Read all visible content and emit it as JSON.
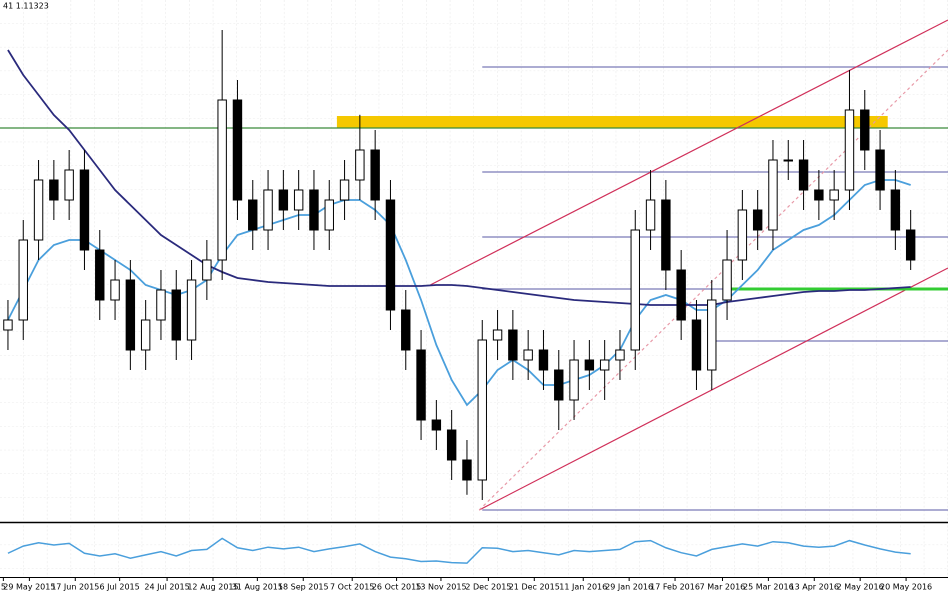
{
  "header": "41 1.11323",
  "chart_data": {
    "type": "candlestick",
    "x": [
      0,
      1,
      2,
      3,
      4,
      5,
      6,
      7,
      8,
      9,
      10,
      11,
      12,
      13,
      14,
      15,
      16,
      17,
      18,
      19,
      20,
      21,
      22,
      23,
      24,
      25,
      26,
      27,
      28,
      29,
      30,
      31,
      32,
      33,
      34,
      35,
      36,
      37,
      38,
      39,
      40,
      41,
      42,
      43,
      44,
      45,
      46,
      47,
      48,
      49,
      50,
      51,
      52,
      53,
      54,
      55,
      56,
      57,
      58,
      59
    ],
    "open": [
      1.0955,
      1.098,
      1.118,
      1.133,
      1.128,
      1.1355,
      1.1155,
      1.103,
      1.108,
      1.0905,
      1.098,
      1.1055,
      1.093,
      1.108,
      1.113,
      1.153,
      1.128,
      1.1205,
      1.1305,
      1.1255,
      1.1305,
      1.1205,
      1.128,
      1.133,
      1.1405,
      1.128,
      1.1005,
      1.0905,
      1.073,
      1.0705,
      1.063,
      1.058,
      1.093,
      1.0955,
      1.088,
      1.0905,
      1.0855,
      1.078,
      1.088,
      1.0855,
      1.088,
      1.0905,
      1.1205,
      1.128,
      1.1105,
      1.098,
      1.0855,
      1.103,
      1.113,
      1.1255,
      1.1205,
      1.138,
      1.138,
      1.1305,
      1.128,
      1.1305,
      1.1505,
      1.1405,
      1.1305,
      1.1205
    ],
    "high": [
      1.103,
      1.123,
      1.138,
      1.138,
      1.1405,
      1.1405,
      1.1205,
      1.113,
      1.113,
      1.103,
      1.1105,
      1.1105,
      1.113,
      1.118,
      1.1705,
      1.158,
      1.133,
      1.1355,
      1.1355,
      1.1355,
      1.1355,
      1.133,
      1.138,
      1.1493,
      1.1455,
      1.133,
      1.1055,
      1.0955,
      1.078,
      1.0755,
      1.068,
      1.098,
      1.1005,
      1.1005,
      1.0955,
      1.0955,
      1.0905,
      1.093,
      1.093,
      1.093,
      1.0955,
      1.1255,
      1.1355,
      1.133,
      1.1155,
      1.103,
      1.108,
      1.1205,
      1.1305,
      1.1305,
      1.143,
      1.143,
      1.143,
      1.1355,
      1.1355,
      1.1605,
      1.1555,
      1.1455,
      1.1355,
      1.1255
    ],
    "low": [
      1.0905,
      1.093,
      1.113,
      1.123,
      1.123,
      1.1105,
      1.098,
      1.098,
      1.0855,
      1.0855,
      1.093,
      1.088,
      1.088,
      1.103,
      1.108,
      1.123,
      1.1155,
      1.1155,
      1.1205,
      1.1205,
      1.1155,
      1.1155,
      1.123,
      1.128,
      1.123,
      1.0955,
      1.0855,
      1.068,
      1.0655,
      1.058,
      1.0543,
      1.053,
      1.088,
      1.083,
      1.083,
      1.0805,
      1.0705,
      1.073,
      1.0805,
      1.078,
      1.083,
      1.0855,
      1.1155,
      1.1055,
      1.093,
      1.0805,
      1.0805,
      1.098,
      1.108,
      1.1155,
      1.1155,
      1.133,
      1.1255,
      1.123,
      1.123,
      1.1255,
      1.1355,
      1.1255,
      1.1155,
      1.1105
    ],
    "close": [
      1.098,
      1.118,
      1.133,
      1.128,
      1.1355,
      1.1155,
      1.103,
      1.108,
      1.0905,
      1.098,
      1.1055,
      1.093,
      1.108,
      1.113,
      1.153,
      1.128,
      1.1205,
      1.1305,
      1.1255,
      1.1305,
      1.1205,
      1.128,
      1.133,
      1.1405,
      1.128,
      1.1005,
      1.0905,
      1.073,
      1.0705,
      1.063,
      1.058,
      1.093,
      1.0955,
      1.088,
      1.0905,
      1.0855,
      1.078,
      1.088,
      1.0855,
      1.088,
      1.0905,
      1.1205,
      1.128,
      1.1105,
      1.098,
      1.0855,
      1.103,
      1.113,
      1.1255,
      1.1205,
      1.138,
      1.138,
      1.1305,
      1.128,
      1.1305,
      1.1505,
      1.1405,
      1.1305,
      1.1205,
      1.113
    ],
    "up_color": "#ffffff",
    "down_color": "#000000",
    "xlim": [
      -0.52,
      61.44
    ],
    "ylim": [
      1.048,
      1.178
    ],
    "xticks": [
      {
        "value": -0.3,
        "label": "5"
      },
      {
        "value": 1.4,
        "label": "29 May 2015"
      },
      {
        "value": 4.4,
        "label": "17 Jun 2015"
      },
      {
        "value": 7.3,
        "label": "6 Jul 2015"
      },
      {
        "value": 10.4,
        "label": "24 Jul 2015"
      },
      {
        "value": 13.4,
        "label": "12 Aug 2015"
      },
      {
        "value": 16.3,
        "label": "31 Aug 2015"
      },
      {
        "value": 19.3,
        "label": "18 Sep 2015"
      },
      {
        "value": 22.5,
        "label": "7 Oct 2015"
      },
      {
        "value": 25.4,
        "label": "26 Oct 2015"
      },
      {
        "value": 28.3,
        "label": "13 Nov 2015"
      },
      {
        "value": 31.4,
        "label": "2 Dec 2015"
      },
      {
        "value": 34.4,
        "label": "21 Dec 2015"
      },
      {
        "value": 37.6,
        "label": "11 Jan 2016"
      },
      {
        "value": 40.6,
        "label": "29 Jan 2016"
      },
      {
        "value": 43.6,
        "label": "17 Feb 2016"
      },
      {
        "value": 46.7,
        "label": "7 Mar 2016"
      },
      {
        "value": 49.7,
        "label": "25 Mar 2016"
      },
      {
        "value": 52.7,
        "label": "13 Apr 2016"
      },
      {
        "value": 55.7,
        "label": "2 May 2016"
      },
      {
        "value": 58.7,
        "label": "20 May 2016"
      }
    ],
    "moving_averages": [
      {
        "color": "#4a9fdc",
        "values": [
          1.098,
          1.1055,
          1.113,
          1.11675,
          1.118,
          1.118,
          1.1155,
          1.113,
          1.1105,
          1.10675,
          1.1055,
          1.10425,
          1.1055,
          1.108,
          1.11425,
          1.11925,
          1.1205,
          1.12175,
          1.123,
          1.12425,
          1.12425,
          1.12675,
          1.128,
          1.128,
          1.1255,
          1.12175,
          1.113,
          1.103,
          1.09175,
          1.083,
          1.07675,
          1.0805,
          1.0855,
          1.088,
          1.0855,
          1.08175,
          1.08175,
          1.083,
          1.08425,
          1.08675,
          1.0905,
          1.098,
          1.103,
          1.10425,
          1.103,
          1.1005,
          1.1005,
          1.103,
          1.10675,
          1.1105,
          1.1155,
          1.118,
          1.1205,
          1.12175,
          1.12425,
          1.128,
          1.13175,
          1.133,
          1.133,
          1.13175
        ]
      },
      {
        "color": "#2a2a7c",
        "values": [
          1.1655,
          1.15925,
          1.15425,
          1.14925,
          1.1455,
          1.1405,
          1.1355,
          1.1305,
          1.12675,
          1.123,
          1.11925,
          1.11675,
          1.11425,
          1.11175,
          1.11,
          1.1085,
          1.108,
          1.1075,
          1.10725,
          1.107,
          1.10675,
          1.1065,
          1.1065,
          1.1065,
          1.1065,
          1.1065,
          1.1065,
          1.1065,
          1.10675,
          1.10675,
          1.1065,
          1.106,
          1.1055,
          1.105,
          1.1045,
          1.104,
          1.1035,
          1.103,
          1.10275,
          1.1025,
          1.10225,
          1.102,
          1.10175,
          1.10175,
          1.10175,
          1.10175,
          1.10175,
          1.1025,
          1.103,
          1.1035,
          1.104,
          1.1045,
          1.105,
          1.10525,
          1.10525,
          1.1055,
          1.1055,
          1.10575,
          1.106,
          1.10625
        ]
      }
    ],
    "oscillator": {
      "color": "#4a9fdc",
      "ylim": [
        0,
        100
      ],
      "values": [
        45,
        58,
        64,
        60,
        63,
        45,
        40,
        44,
        36,
        42,
        48,
        40,
        50,
        52,
        72,
        55,
        50,
        56,
        53,
        56,
        48,
        53,
        57,
        62,
        48,
        38,
        35,
        30,
        31,
        28,
        27,
        55,
        54,
        48,
        50,
        46,
        42,
        50,
        48,
        50,
        52,
        66,
        68,
        55,
        46,
        40,
        52,
        57,
        62,
        58,
        66,
        64,
        58,
        56,
        58,
        68,
        60,
        53,
        47,
        44
      ]
    },
    "zone": {
      "color": "#f5c800",
      "x": [
        21.5,
        57.5
      ],
      "y": [
        1.146,
        1.149
      ]
    },
    "lines": [
      {
        "color": "#3a8a3a",
        "x": [
          -0.52,
          61.44
        ],
        "y": [
          1.146,
          1.146
        ]
      },
      {
        "color": "#7a7ab8",
        "x": [
          31,
          61.44
        ],
        "y": [
          1.16125,
          1.16125
        ]
      },
      {
        "color": "#7a7ab8",
        "x": [
          31,
          61.44
        ],
        "y": [
          1.135,
          1.135
        ]
      },
      {
        "color": "#7a7ab8",
        "x": [
          31,
          61.44
        ],
        "y": [
          1.11875,
          1.11875
        ]
      },
      {
        "color": "#7a7ab8",
        "x": [
          31,
          61.44
        ],
        "y": [
          1.10575,
          1.10575
        ]
      },
      {
        "color": "#7a7ab8",
        "x": [
          46,
          61.44
        ],
        "y": [
          1.09275,
          1.09275
        ]
      },
      {
        "color": "#7a7ab8",
        "x": [
          31,
          61.44
        ],
        "y": [
          1.0505,
          1.0505
        ]
      },
      {
        "color": "#d0305a",
        "x": [
          27.6,
          61.44
        ],
        "y": [
          1.10675,
          1.173
        ]
      },
      {
        "color": "#d0305a",
        "x": [
          30.8,
          61.44
        ],
        "y": [
          1.0505,
          1.111
        ]
      },
      {
        "color": "#e89aa8",
        "dashed": true,
        "x": [
          30.8,
          61.44
        ],
        "y": [
          1.0505,
          1.1655
        ]
      },
      {
        "color": "#33cc33",
        "width": 3,
        "x": [
          47.2,
          61.44
        ],
        "y": [
          1.10575,
          1.10575
        ]
      }
    ]
  }
}
